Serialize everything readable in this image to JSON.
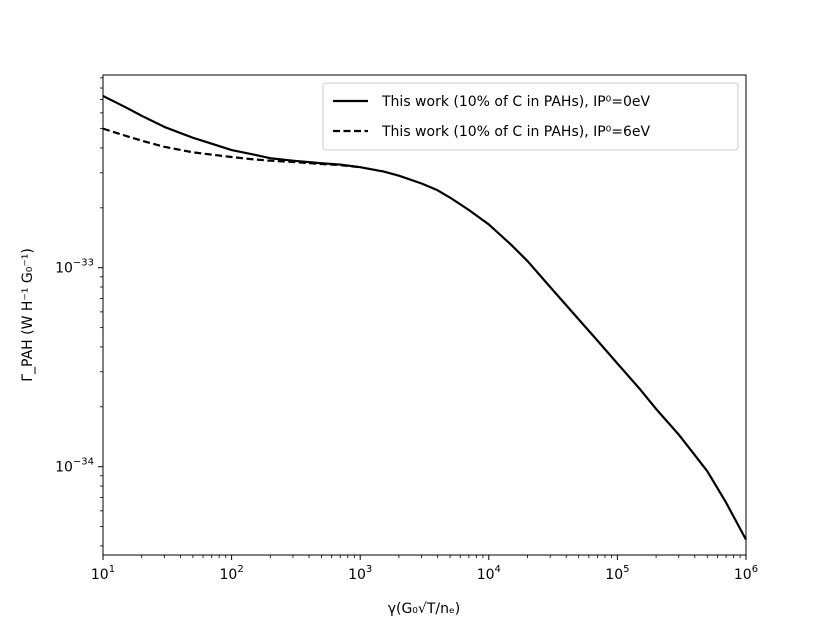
{
  "chart_data": {
    "type": "line",
    "title": "",
    "xlabel": "γ(G₀√T/nₑ)",
    "ylabel": "Γ_PAH (W H⁻¹ G₀⁻¹)",
    "xscale": "log",
    "yscale": "log",
    "xlim": [
      10,
      1000000
    ],
    "ylim": [
      3.6e-35,
      9.3e-33
    ],
    "legend_position": "upper-right",
    "grid": false,
    "x_ticks": [
      {
        "value": 10,
        "base": "10",
        "exp": "1"
      },
      {
        "value": 100,
        "base": "10",
        "exp": "2"
      },
      {
        "value": 1000,
        "base": "10",
        "exp": "3"
      },
      {
        "value": 10000,
        "base": "10",
        "exp": "4"
      },
      {
        "value": 100000,
        "base": "10",
        "exp": "5"
      },
      {
        "value": 1000000,
        "base": "10",
        "exp": "6"
      }
    ],
    "y_ticks": [
      {
        "value": 1e-33,
        "base": "10",
        "exp": "−33"
      },
      {
        "value": 1e-34,
        "base": "10",
        "exp": "−34"
      }
    ],
    "series": [
      {
        "name": "This work (10% of C in PAHs), IP⁰=0eV",
        "style": "solid",
        "color": "#000000",
        "x": [
          10,
          15,
          20,
          30,
          50,
          70,
          100,
          150,
          200,
          300,
          500,
          700,
          1000,
          1500,
          2000,
          3000,
          4000,
          5000,
          7000,
          10000,
          15000,
          20000,
          30000,
          50000,
          70000,
          100000,
          150000,
          200000,
          300000,
          500000,
          700000,
          1000000
        ],
        "y": [
          7.3e-33,
          6.4e-33,
          5.8e-33,
          5.1e-33,
          4.5e-33,
          4.2e-33,
          3.9e-33,
          3.7e-33,
          3.55e-33,
          3.45e-33,
          3.35e-33,
          3.3e-33,
          3.2e-33,
          3.05e-33,
          2.9e-33,
          2.65e-33,
          2.45e-33,
          2.25e-33,
          1.95e-33,
          1.65e-33,
          1.3e-33,
          1.08e-33,
          8e-34,
          5.5e-34,
          4.3e-34,
          3.3e-34,
          2.45e-34,
          1.95e-34,
          1.45e-34,
          9.5e-35,
          6.6e-35,
          4.3e-35
        ]
      },
      {
        "name": "This work (10% of C in PAHs), IP⁰=6eV",
        "style": "dashed",
        "color": "#000000",
        "x": [
          10,
          15,
          20,
          30,
          50,
          70,
          100,
          150,
          200,
          300,
          500,
          700,
          1000
        ],
        "y": [
          5e-33,
          4.6e-33,
          4.35e-33,
          4.05e-33,
          3.8e-33,
          3.7e-33,
          3.6e-33,
          3.5e-33,
          3.45e-33,
          3.4e-33,
          3.32e-33,
          3.28e-33,
          3.2e-33
        ]
      }
    ]
  }
}
